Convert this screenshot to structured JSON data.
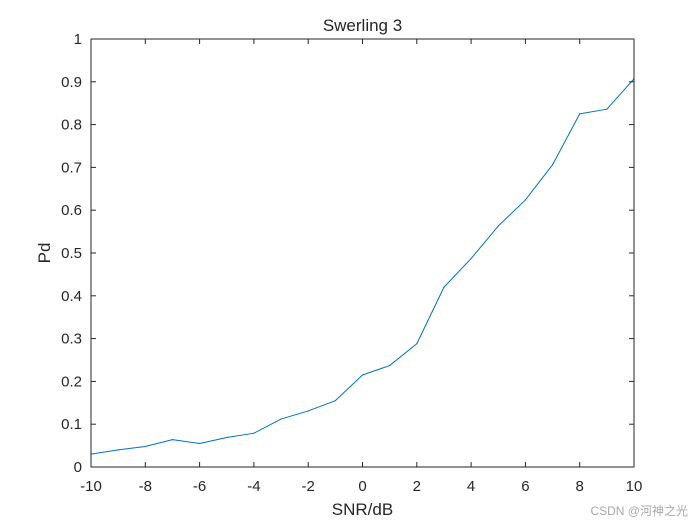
{
  "chart_data": {
    "type": "line",
    "title": "Swerling 3",
    "xlabel": "SNR/dB",
    "ylabel": "Pd",
    "xlim": [
      -10,
      10
    ],
    "ylim": [
      0,
      1
    ],
    "xticks": [
      -10,
      -8,
      -6,
      -4,
      -2,
      0,
      2,
      4,
      6,
      8,
      10
    ],
    "yticks": [
      0,
      0.1,
      0.2,
      0.3,
      0.4,
      0.5,
      0.6,
      0.7,
      0.8,
      0.9,
      1
    ],
    "grid": false,
    "series": [
      {
        "color": "#0072BD",
        "x": [
          -10,
          -9,
          -8,
          -7,
          -6,
          -5,
          -4,
          -3,
          -2,
          -1,
          0,
          1,
          2,
          3,
          4,
          5,
          6,
          7,
          8,
          9,
          10
        ],
        "y": [
          0.03,
          0.04,
          0.048,
          0.064,
          0.055,
          0.069,
          0.079,
          0.112,
          0.131,
          0.155,
          0.215,
          0.237,
          0.288,
          0.42,
          0.487,
          0.563,
          0.624,
          0.706,
          0.825,
          0.836,
          0.907
        ]
      }
    ]
  },
  "watermark": "CSDN @河神之光"
}
